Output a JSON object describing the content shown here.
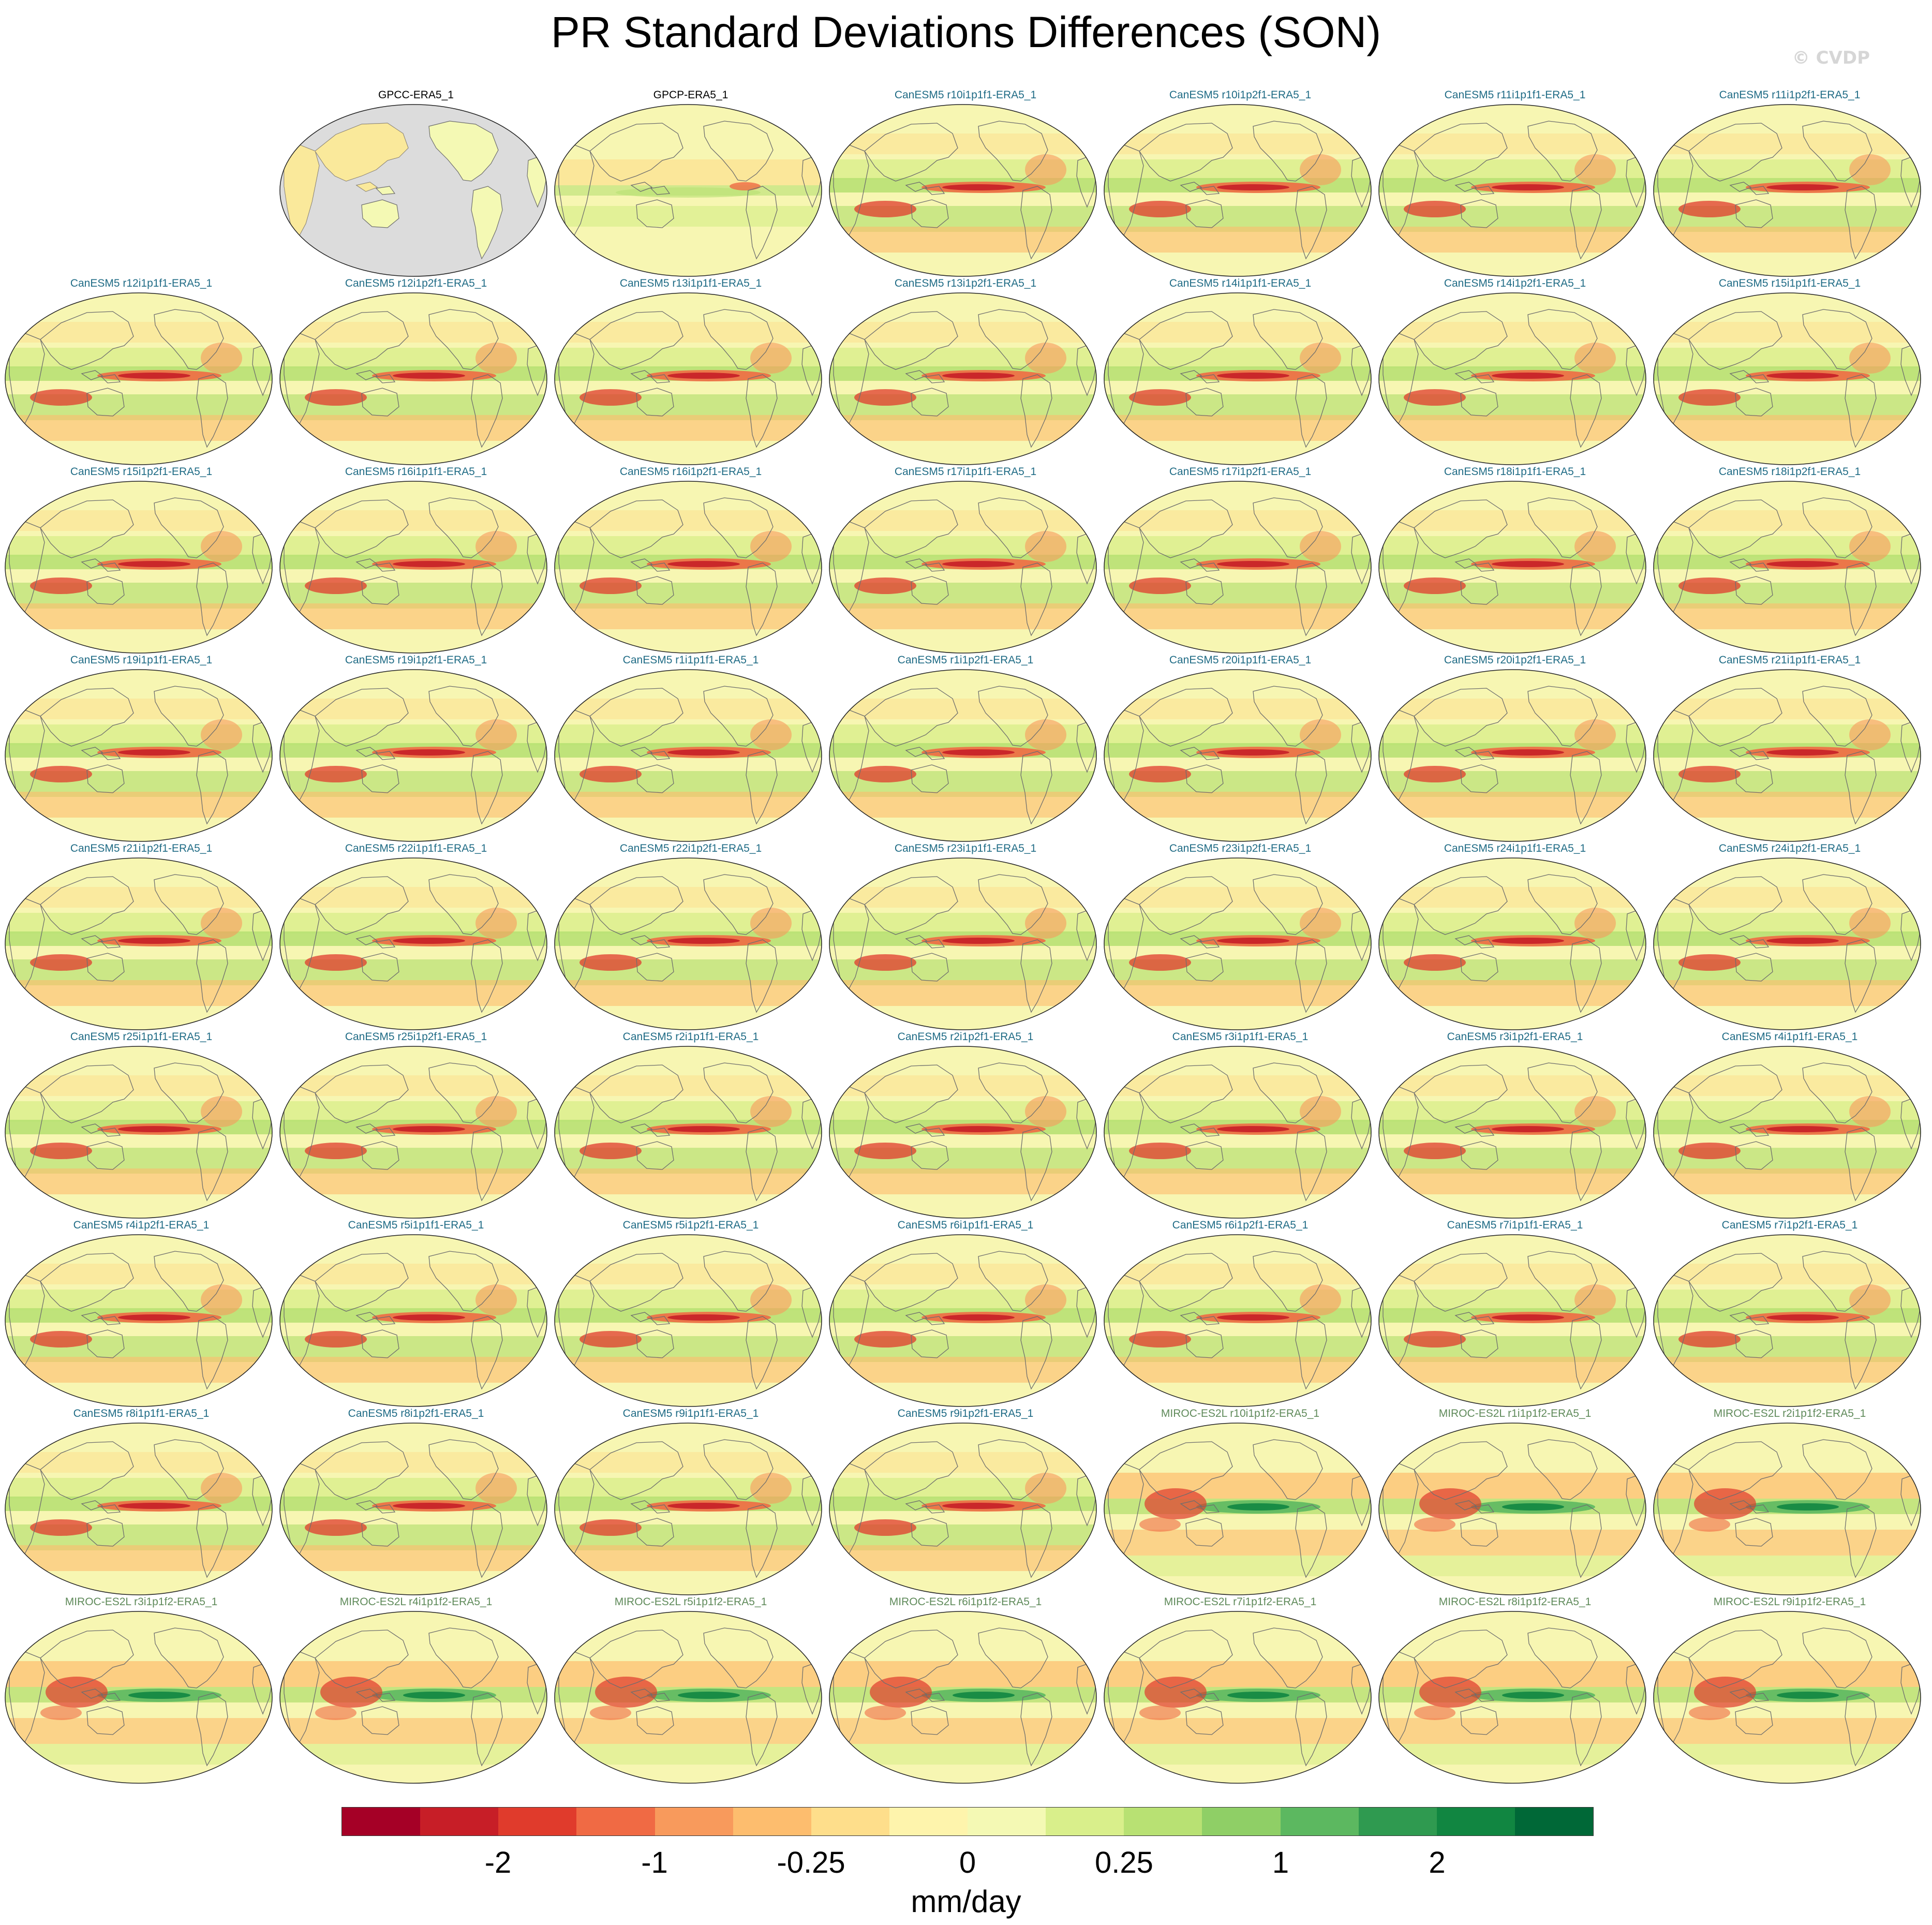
{
  "title": "PR Standard Deviations Differences (SON)",
  "watermark": "© CVDP",
  "panels": [
    {
      "label": "GPCC-ERA5_1",
      "group": "obs",
      "style": "masked"
    },
    {
      "label": "GPCP-ERA5_1",
      "group": "obs",
      "style": "gpcp"
    },
    {
      "label": "CanESM5 r10i1p1f1-ERA5_1",
      "group": "canesm",
      "style": "canesm"
    },
    {
      "label": "CanESM5 r10i1p2f1-ERA5_1",
      "group": "canesm",
      "style": "canesm"
    },
    {
      "label": "CanESM5 r11i1p1f1-ERA5_1",
      "group": "canesm",
      "style": "canesm"
    },
    {
      "label": "CanESM5 r11i1p2f1-ERA5_1",
      "group": "canesm",
      "style": "canesm"
    },
    {
      "label": "CanESM5 r12i1p1f1-ERA5_1",
      "group": "canesm",
      "style": "canesm"
    },
    {
      "label": "CanESM5 r12i1p2f1-ERA5_1",
      "group": "canesm",
      "style": "canesm"
    },
    {
      "label": "CanESM5 r13i1p1f1-ERA5_1",
      "group": "canesm",
      "style": "canesm"
    },
    {
      "label": "CanESM5 r13i1p2f1-ERA5_1",
      "group": "canesm",
      "style": "canesm"
    },
    {
      "label": "CanESM5 r14i1p1f1-ERA5_1",
      "group": "canesm",
      "style": "canesm"
    },
    {
      "label": "CanESM5 r14i1p2f1-ERA5_1",
      "group": "canesm",
      "style": "canesm"
    },
    {
      "label": "CanESM5 r15i1p1f1-ERA5_1",
      "group": "canesm",
      "style": "canesm"
    },
    {
      "label": "CanESM5 r15i1p2f1-ERA5_1",
      "group": "canesm",
      "style": "canesm"
    },
    {
      "label": "CanESM5 r16i1p1f1-ERA5_1",
      "group": "canesm",
      "style": "canesm"
    },
    {
      "label": "CanESM5 r16i1p2f1-ERA5_1",
      "group": "canesm",
      "style": "canesm"
    },
    {
      "label": "CanESM5 r17i1p1f1-ERA5_1",
      "group": "canesm",
      "style": "canesm"
    },
    {
      "label": "CanESM5 r17i1p2f1-ERA5_1",
      "group": "canesm",
      "style": "canesm"
    },
    {
      "label": "CanESM5 r18i1p1f1-ERA5_1",
      "group": "canesm",
      "style": "canesm"
    },
    {
      "label": "CanESM5 r18i1p2f1-ERA5_1",
      "group": "canesm",
      "style": "canesm"
    },
    {
      "label": "CanESM5 r19i1p1f1-ERA5_1",
      "group": "canesm",
      "style": "canesm"
    },
    {
      "label": "CanESM5 r19i1p2f1-ERA5_1",
      "group": "canesm",
      "style": "canesm"
    },
    {
      "label": "CanESM5 r1i1p1f1-ERA5_1",
      "group": "canesm",
      "style": "canesm"
    },
    {
      "label": "CanESM5 r1i1p2f1-ERA5_1",
      "group": "canesm",
      "style": "canesm"
    },
    {
      "label": "CanESM5 r20i1p1f1-ERA5_1",
      "group": "canesm",
      "style": "canesm"
    },
    {
      "label": "CanESM5 r20i1p2f1-ERA5_1",
      "group": "canesm",
      "style": "canesm"
    },
    {
      "label": "CanESM5 r21i1p1f1-ERA5_1",
      "group": "canesm",
      "style": "canesm"
    },
    {
      "label": "CanESM5 r21i1p2f1-ERA5_1",
      "group": "canesm",
      "style": "canesm"
    },
    {
      "label": "CanESM5 r22i1p1f1-ERA5_1",
      "group": "canesm",
      "style": "canesm"
    },
    {
      "label": "CanESM5 r22i1p2f1-ERA5_1",
      "group": "canesm",
      "style": "canesm"
    },
    {
      "label": "CanESM5 r23i1p1f1-ERA5_1",
      "group": "canesm",
      "style": "canesm"
    },
    {
      "label": "CanESM5 r23i1p2f1-ERA5_1",
      "group": "canesm",
      "style": "canesm"
    },
    {
      "label": "CanESM5 r24i1p1f1-ERA5_1",
      "group": "canesm",
      "style": "canesm"
    },
    {
      "label": "CanESM5 r24i1p2f1-ERA5_1",
      "group": "canesm",
      "style": "canesm"
    },
    {
      "label": "CanESM5 r25i1p1f1-ERA5_1",
      "group": "canesm",
      "style": "canesm"
    },
    {
      "label": "CanESM5 r25i1p2f1-ERA5_1",
      "group": "canesm",
      "style": "canesm"
    },
    {
      "label": "CanESM5 r2i1p1f1-ERA5_1",
      "group": "canesm",
      "style": "canesm"
    },
    {
      "label": "CanESM5 r2i1p2f1-ERA5_1",
      "group": "canesm",
      "style": "canesm"
    },
    {
      "label": "CanESM5 r3i1p1f1-ERA5_1",
      "group": "canesm",
      "style": "canesm"
    },
    {
      "label": "CanESM5 r3i1p2f1-ERA5_1",
      "group": "canesm",
      "style": "canesm"
    },
    {
      "label": "CanESM5 r4i1p1f1-ERA5_1",
      "group": "canesm",
      "style": "canesm"
    },
    {
      "label": "CanESM5 r4i1p2f1-ERA5_1",
      "group": "canesm",
      "style": "canesm"
    },
    {
      "label": "CanESM5 r5i1p1f1-ERA5_1",
      "group": "canesm",
      "style": "canesm"
    },
    {
      "label": "CanESM5 r5i1p2f1-ERA5_1",
      "group": "canesm",
      "style": "canesm"
    },
    {
      "label": "CanESM5 r6i1p1f1-ERA5_1",
      "group": "canesm",
      "style": "canesm"
    },
    {
      "label": "CanESM5 r6i1p2f1-ERA5_1",
      "group": "canesm",
      "style": "canesm"
    },
    {
      "label": "CanESM5 r7i1p1f1-ERA5_1",
      "group": "canesm",
      "style": "canesm"
    },
    {
      "label": "CanESM5 r7i1p2f1-ERA5_1",
      "group": "canesm",
      "style": "canesm"
    },
    {
      "label": "CanESM5 r8i1p1f1-ERA5_1",
      "group": "canesm",
      "style": "canesm"
    },
    {
      "label": "CanESM5 r8i1p2f1-ERA5_1",
      "group": "canesm",
      "style": "canesm"
    },
    {
      "label": "CanESM5 r9i1p1f1-ERA5_1",
      "group": "canesm",
      "style": "canesm"
    },
    {
      "label": "CanESM5 r9i1p2f1-ERA5_1",
      "group": "canesm",
      "style": "canesm"
    },
    {
      "label": "MIROC-ES2L r10i1p1f2-ERA5_1",
      "group": "miroc",
      "style": "miroc"
    },
    {
      "label": "MIROC-ES2L r1i1p1f2-ERA5_1",
      "group": "miroc",
      "style": "miroc"
    },
    {
      "label": "MIROC-ES2L r2i1p1f2-ERA5_1",
      "group": "miroc",
      "style": "miroc"
    },
    {
      "label": "MIROC-ES2L r3i1p1f2-ERA5_1",
      "group": "miroc",
      "style": "miroc"
    },
    {
      "label": "MIROC-ES2L r4i1p1f2-ERA5_1",
      "group": "miroc",
      "style": "miroc"
    },
    {
      "label": "MIROC-ES2L r5i1p1f2-ERA5_1",
      "group": "miroc",
      "style": "miroc"
    },
    {
      "label": "MIROC-ES2L r6i1p1f2-ERA5_1",
      "group": "miroc",
      "style": "miroc"
    },
    {
      "label": "MIROC-ES2L r7i1p1f2-ERA5_1",
      "group": "miroc",
      "style": "miroc"
    },
    {
      "label": "MIROC-ES2L r8i1p1f2-ERA5_1",
      "group": "miroc",
      "style": "miroc"
    },
    {
      "label": "MIROC-ES2L r9i1p1f2-ERA5_1",
      "group": "miroc",
      "style": "miroc"
    }
  ],
  "colorbar": {
    "colors": [
      "#a50026",
      "#c71e27",
      "#e03b2c",
      "#f06a44",
      "#f89a5c",
      "#fdbd6e",
      "#fede8b",
      "#fef4ac",
      "#f4f9b4",
      "#d9ef8b",
      "#b8e173",
      "#8fcf66",
      "#5cb860",
      "#2f9a50",
      "#118641",
      "#006837"
    ],
    "tick_labels": [
      "-2",
      "-1",
      "-0.25",
      "0",
      "0.25",
      "1",
      "2"
    ],
    "units": "mm/day"
  },
  "palette": {
    "land_mask": "#dcdcdc",
    "coast": "#6e6e6e",
    "background": "#f7f6b2"
  }
}
